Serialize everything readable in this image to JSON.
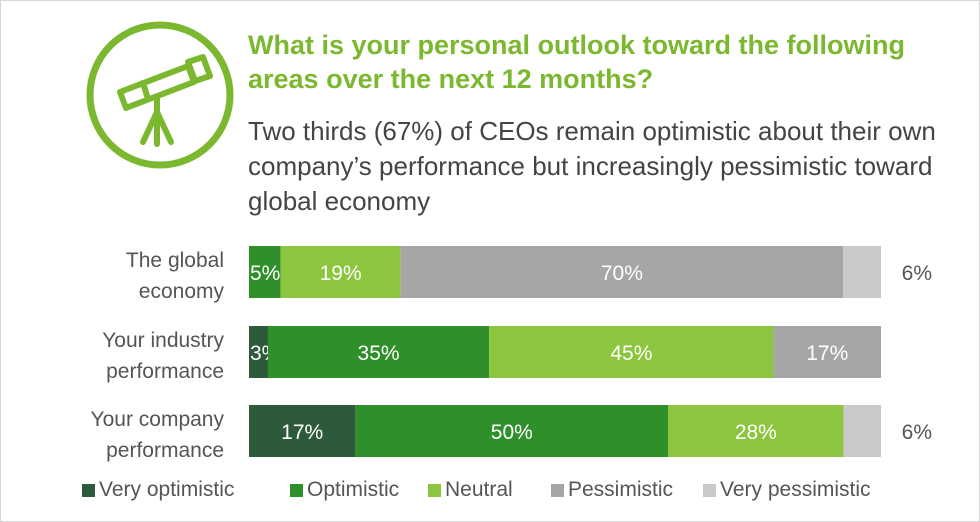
{
  "header": {
    "title": "What is your personal outlook toward the following areas over the next 12 months?",
    "subtitle": "Two thirds (67%) of CEOs remain optimistic about their own company’s performance but increasingly pessimistic toward global economy",
    "icon": "telescope-icon"
  },
  "colors": {
    "accent": "#7cb82f",
    "very_optimistic": "#2d5a3a",
    "optimistic": "#2f8f2b",
    "neutral": "#8cc63f",
    "pessimistic": "#a6a6a6",
    "very_pessimistic": "#c9c9c9"
  },
  "chart_data": {
    "type": "bar",
    "orientation": "horizontal",
    "stacked": true,
    "categories": [
      [
        "The global",
        "economy"
      ],
      [
        "Your industry",
        "performance"
      ],
      [
        "Your company",
        "performance"
      ]
    ],
    "series": [
      {
        "name": "Very optimistic",
        "color": "#2d5a3a",
        "values": [
          0,
          3,
          17
        ]
      },
      {
        "name": "Optimistic",
        "color": "#2f8f2b",
        "values": [
          5,
          35,
          50
        ]
      },
      {
        "name": "Neutral",
        "color": "#8cc63f",
        "values": [
          19,
          45,
          28
        ]
      },
      {
        "name": "Pessimistic",
        "color": "#a6a6a6",
        "values": [
          70,
          17,
          0
        ]
      },
      {
        "name": "Very pessimistic",
        "color": "#c9c9c9",
        "values": [
          6,
          0,
          6
        ]
      }
    ],
    "labels": [
      [
        "",
        "5%",
        "19%",
        "70%",
        ""
      ],
      [
        "3%",
        "35%",
        "45%",
        "17%",
        ""
      ],
      [
        "17%",
        "50%",
        "28%",
        "",
        ""
      ]
    ],
    "outside_labels": [
      "6%",
      "",
      "6%"
    ],
    "legend_position": "bottom",
    "grid": false
  },
  "legend": [
    {
      "label": "Very optimistic",
      "color": "#2d5a3a"
    },
    {
      "label": "Optimistic",
      "color": "#2f8f2b"
    },
    {
      "label": "Neutral",
      "color": "#8cc63f"
    },
    {
      "label": "Pessimistic",
      "color": "#a6a6a6"
    },
    {
      "label": "Very pessimistic",
      "color": "#c9c9c9"
    }
  ]
}
